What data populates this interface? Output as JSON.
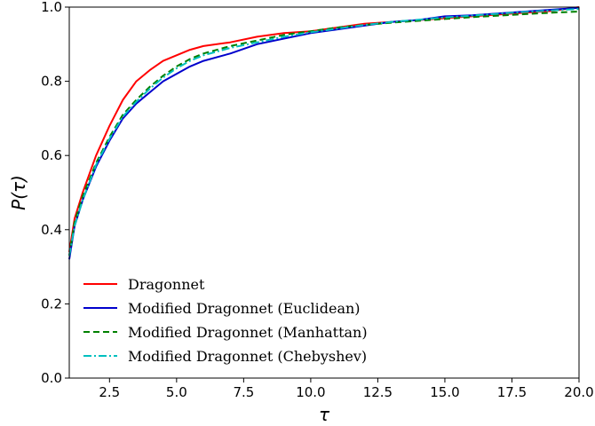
{
  "chart_data": {
    "type": "line",
    "title": "",
    "xlabel": "τ",
    "ylabel": "P(τ)",
    "xlim": [
      1.0,
      20.0
    ],
    "ylim": [
      0.0,
      1.0
    ],
    "x_ticks": [
      "2.5",
      "5.0",
      "7.5",
      "10.0",
      "12.5",
      "15.0",
      "17.5",
      "20.0"
    ],
    "y_ticks": [
      "0.0",
      "0.2",
      "0.4",
      "0.6",
      "0.8",
      "1.0"
    ],
    "grid": false,
    "legend_position": "lower-left",
    "series": [
      {
        "name": "Dragonnet",
        "color": "#ff0000",
        "dash": "solid",
        "x": [
          1.0,
          1.2,
          1.5,
          2.0,
          2.5,
          3.0,
          3.5,
          4.0,
          4.5,
          5.0,
          5.5,
          6.0,
          7.0,
          8.0,
          9.0,
          10.0,
          11.0,
          12.0,
          13.0,
          14.0,
          15.0,
          16.0,
          17.0,
          18.0,
          19.0,
          20.0
        ],
        "y": [
          0.34,
          0.43,
          0.5,
          0.6,
          0.68,
          0.75,
          0.8,
          0.83,
          0.855,
          0.87,
          0.885,
          0.895,
          0.905,
          0.92,
          0.93,
          0.935,
          0.945,
          0.955,
          0.96,
          0.965,
          0.97,
          0.975,
          0.98,
          0.985,
          0.99,
          1.0
        ]
      },
      {
        "name": "Modified Dragonnet (Euclidean)",
        "color": "#0000cc",
        "dash": "solid",
        "x": [
          1.0,
          1.2,
          1.5,
          2.0,
          2.5,
          3.0,
          3.5,
          4.0,
          4.5,
          5.0,
          5.5,
          6.0,
          7.0,
          8.0,
          9.0,
          10.0,
          11.0,
          12.0,
          13.0,
          14.0,
          15.0,
          16.0,
          17.0,
          18.0,
          19.0,
          20.0
        ],
        "y": [
          0.32,
          0.41,
          0.48,
          0.57,
          0.64,
          0.7,
          0.74,
          0.77,
          0.8,
          0.82,
          0.84,
          0.855,
          0.875,
          0.9,
          0.915,
          0.93,
          0.94,
          0.95,
          0.96,
          0.965,
          0.975,
          0.978,
          0.983,
          0.988,
          0.993,
          0.998
        ]
      },
      {
        "name": "Modified Dragonnet (Manhattan)",
        "color": "#008000",
        "dash": "dashed",
        "x": [
          1.0,
          1.2,
          1.5,
          2.0,
          2.5,
          3.0,
          3.5,
          4.0,
          4.5,
          5.0,
          5.5,
          6.0,
          7.0,
          8.0,
          9.0,
          10.0,
          11.0,
          12.0,
          13.0,
          14.0,
          15.0,
          16.0,
          17.0,
          18.0,
          19.0,
          20.0
        ],
        "y": [
          0.33,
          0.42,
          0.49,
          0.58,
          0.65,
          0.71,
          0.75,
          0.785,
          0.815,
          0.84,
          0.86,
          0.875,
          0.895,
          0.91,
          0.925,
          0.935,
          0.945,
          0.952,
          0.958,
          0.963,
          0.968,
          0.973,
          0.977,
          0.981,
          0.985,
          0.988
        ]
      },
      {
        "name": "Modified Dragonnet (Chebyshev)",
        "color": "#00bfbf",
        "dash": "dashdot",
        "x": [
          1.0,
          1.2,
          1.5,
          2.0,
          2.5,
          3.0,
          3.5,
          4.0,
          4.5,
          5.0,
          5.5,
          6.0,
          7.0,
          8.0,
          9.0,
          10.0,
          11.0,
          12.0,
          13.0,
          14.0,
          15.0,
          16.0,
          17.0,
          18.0,
          19.0,
          20.0
        ],
        "y": [
          0.33,
          0.41,
          0.48,
          0.575,
          0.645,
          0.705,
          0.745,
          0.78,
          0.81,
          0.835,
          0.855,
          0.87,
          0.89,
          0.905,
          0.92,
          0.932,
          0.942,
          0.952,
          0.96,
          0.966,
          0.972,
          0.977,
          0.982,
          0.987,
          0.991,
          0.995
        ]
      }
    ]
  }
}
